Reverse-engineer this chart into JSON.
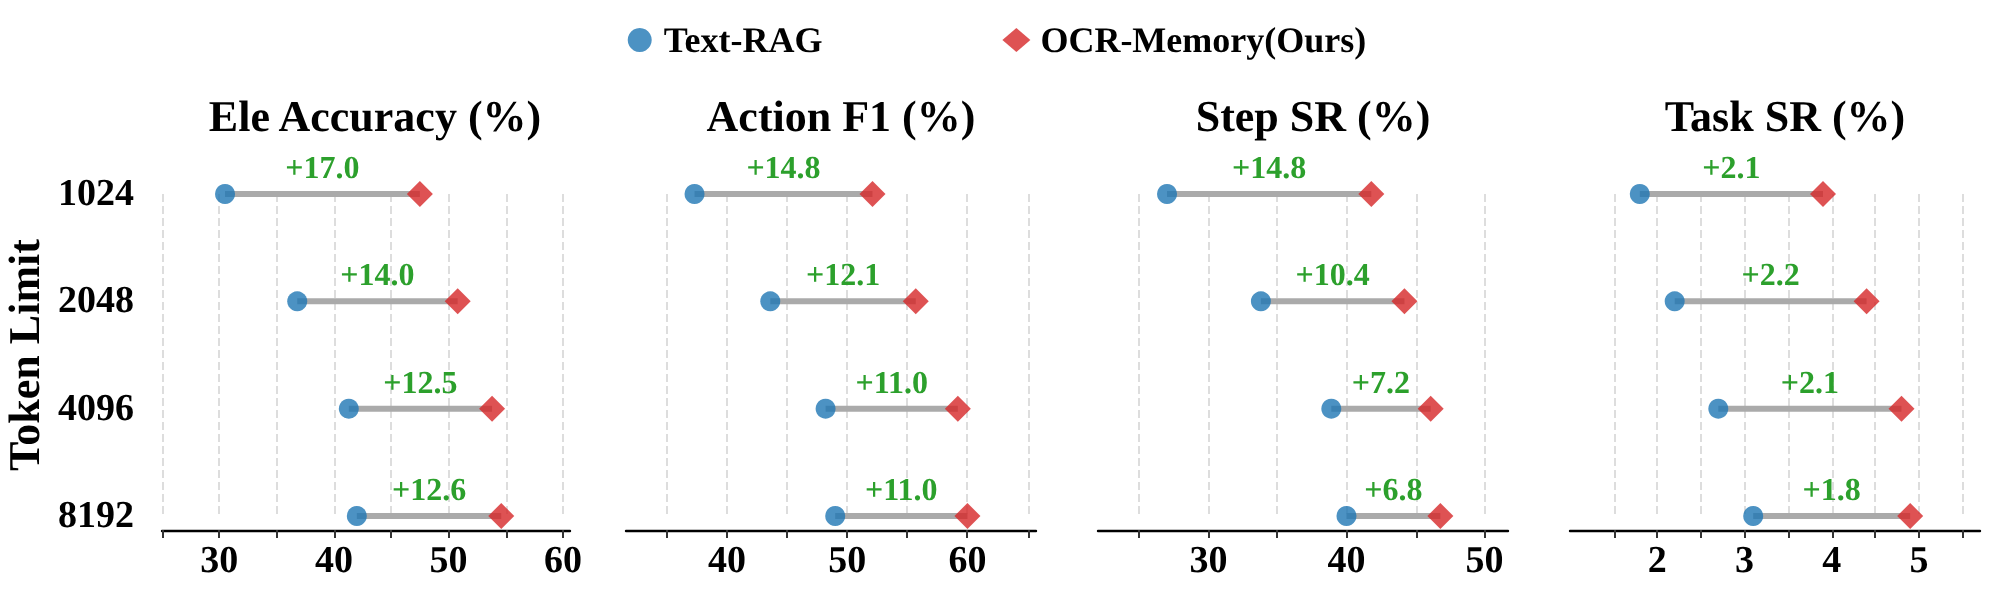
{
  "chart_data": [
    {
      "type": "scatter",
      "orientation": "horizontal",
      "title": "Ele Accuracy (%)",
      "ylabel": "Token Limit",
      "categories": [
        "1024",
        "2048",
        "4096",
        "8192"
      ],
      "legend": "top",
      "grid": "x",
      "xlim": [
        25,
        60.6
      ],
      "xticks": [
        {
          "value": 25,
          "label": null
        },
        30,
        {
          "value": 35,
          "label": null
        },
        40,
        {
          "value": 45,
          "label": null
        },
        50,
        {
          "value": 55,
          "label": null
        },
        60
      ],
      "series": [
        {
          "type": "bar",
          "color": "#aaaaaa",
          "base": [
            30.5,
            36.8,
            41.3,
            42.0
          ],
          "values": [
            17.0,
            14.0,
            12.5,
            12.6
          ],
          "value_labels": [
            "+17.0",
            "+14.0",
            "+12.5",
            "+12.6"
          ]
        },
        {
          "name": "Text-RAG",
          "color": "#1f77b4",
          "marker": "circle",
          "values": [
            30.5,
            36.8,
            41.3,
            42.0
          ]
        },
        {
          "name": "OCR-Memory(Ours)",
          "color": "#d62728",
          "marker": "diamond",
          "values": [
            47.5,
            50.8,
            53.8,
            54.6
          ]
        }
      ]
    },
    {
      "type": "scatter",
      "orientation": "horizontal",
      "title": "Action F1 (%)",
      "categories": [
        "1024",
        "2048",
        "4096",
        "8192"
      ],
      "tick_labels": "x",
      "grid": "x",
      "xlim": [
        31.6,
        65.7
      ],
      "xticks": [
        {
          "value": 35,
          "label": null
        },
        40,
        {
          "value": 45,
          "label": null
        },
        50,
        {
          "value": 55,
          "label": null
        },
        60,
        {
          "value": 65,
          "label": null
        }
      ],
      "series": [
        {
          "type": "bar",
          "color": "#aaaaaa",
          "base": [
            37.3,
            43.6,
            48.2,
            49.0
          ],
          "values": [
            14.8,
            12.1,
            11.0,
            11.0
          ],
          "value_labels": [
            "+14.8",
            "+12.1",
            "+11.0",
            "+11.0"
          ]
        },
        {
          "color": "#1f77b4",
          "marker": "circle",
          "values": [
            37.3,
            43.6,
            48.2,
            49.0
          ]
        },
        {
          "color": "#d62728",
          "marker": "diamond",
          "values": [
            52.1,
            55.7,
            59.2,
            60.0
          ]
        }
      ]
    },
    {
      "type": "scatter",
      "orientation": "horizontal",
      "title": "Step SR (%)",
      "categories": [
        "1024",
        "2048",
        "4096",
        "8192"
      ],
      "tick_labels": "x",
      "grid": "x",
      "xlim": [
        22,
        51.7
      ],
      "xticks": [
        {
          "value": 25,
          "label": null
        },
        30,
        {
          "value": 35,
          "label": null
        },
        40,
        {
          "value": 45,
          "label": null
        },
        50
      ],
      "series": [
        {
          "type": "bar",
          "color": "#aaaaaa",
          "base": [
            27.0,
            33.8,
            38.9,
            40.0
          ],
          "values": [
            14.8,
            10.4,
            7.2,
            6.8
          ],
          "value_labels": [
            "+14.8",
            "+10.4",
            "+7.2",
            "+6.8"
          ]
        },
        {
          "color": "#1f77b4",
          "marker": "circle",
          "values": [
            27.0,
            33.8,
            38.9,
            40.0
          ]
        },
        {
          "color": "#d62728",
          "marker": "diamond",
          "values": [
            41.8,
            44.2,
            46.1,
            46.8
          ]
        }
      ]
    },
    {
      "type": "scatter",
      "orientation": "horizontal",
      "title": "Task SR (%)",
      "categories": [
        "1024",
        "2048",
        "4096",
        "8192"
      ],
      "tick_labels": "x",
      "grid": "x",
      "xlim": [
        1.0,
        5.7
      ],
      "xticks": [
        {
          "value": 1.5,
          "label": null
        },
        2,
        {
          "value": 2.5,
          "label": null
        },
        3,
        {
          "value": 3.5,
          "label": null
        },
        4,
        {
          "value": 4.5,
          "label": null
        },
        5,
        {
          "value": 5.5,
          "label": null
        }
      ],
      "series": [
        {
          "type": "bar",
          "color": "#aaaaaa",
          "base": [
            1.8,
            2.2,
            2.7,
            3.1
          ],
          "values": [
            2.1,
            2.2,
            2.1,
            1.8
          ],
          "value_labels": [
            "+2.1",
            "+2.2",
            "+2.1",
            "+1.8"
          ]
        },
        {
          "color": "#1f77b4",
          "marker": "circle",
          "values": [
            1.8,
            2.2,
            2.7,
            3.1
          ]
        },
        {
          "color": "#d62728",
          "marker": "diamond",
          "values": [
            3.9,
            4.4,
            4.8,
            4.9
          ]
        }
      ]
    }
  ]
}
